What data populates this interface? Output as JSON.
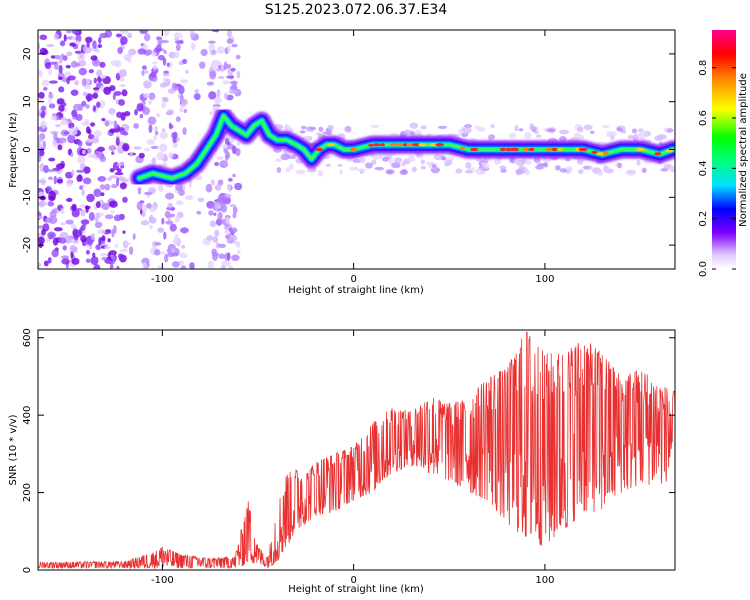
{
  "page_title": "S125.2023.072.06.37.E34",
  "chart_data": [
    {
      "type": "heatmap",
      "title": "S125.2023.072.06.37.E34",
      "xlabel": "Height of straight line (km)",
      "ylabel": "Frequency (Hz)",
      "xlim": [
        -165,
        168
      ],
      "ylim": [
        -25,
        25
      ],
      "x_ticks": [
        -100,
        0,
        100
      ],
      "y_ticks": [
        -20,
        -10,
        0,
        10,
        20
      ],
      "colorbar": {
        "label": "Normalized spectral amplitude",
        "range": [
          0,
          0.95
        ],
        "ticks": [
          0.0,
          0.2,
          0.4,
          0.6,
          0.8
        ],
        "tick_labels": [
          "0.0",
          "0.2",
          "0.4",
          "0.6",
          "0.8"
        ],
        "colormap": [
          "#ffffff",
          "#e0c8ff",
          "#8000ff",
          "#0000ff",
          "#00e0ff",
          "#00ff00",
          "#ffff00",
          "#ff8000",
          "#ff0000",
          "#ff0090"
        ]
      },
      "ridge": {
        "x": [
          -112,
          -105,
          -95,
          -88,
          -82,
          -77,
          -72,
          -68,
          -64,
          -60,
          -56,
          -52,
          -48,
          -44,
          -40,
          -35,
          -30,
          -26,
          -22,
          -18,
          -14,
          -10,
          -5,
          0,
          10,
          20,
          30,
          40,
          50,
          60,
          70,
          80,
          90,
          100,
          110,
          120,
          130,
          140,
          150,
          160,
          167
        ],
        "y": [
          -6,
          -5,
          -6,
          -5,
          -3,
          0,
          3,
          7,
          5,
          4,
          3,
          5,
          6,
          3,
          2,
          2,
          1,
          0,
          -2,
          0,
          1,
          1,
          0,
          0,
          1,
          1,
          1,
          1,
          1,
          0,
          0,
          0,
          0,
          0,
          0,
          0,
          -1,
          0,
          0,
          -1,
          0
        ]
      },
      "grid": false
    },
    {
      "type": "line",
      "xlabel": "Height of straight line (km)",
      "ylabel": "SNR (10 * v/v)",
      "xlim": [
        -165,
        168
      ],
      "ylim": [
        0,
        620
      ],
      "x_ticks": [
        -100,
        0,
        100
      ],
      "y_ticks": [
        0,
        200,
        400,
        600
      ],
      "color": "#e83030",
      "envelope": {
        "x": [
          -165,
          -120,
          -105,
          -100,
          -90,
          -75,
          -62,
          -58,
          -55,
          -50,
          -45,
          -40,
          -35,
          -30,
          -25,
          -20,
          -10,
          0,
          10,
          20,
          30,
          40,
          50,
          60,
          70,
          80,
          90,
          100,
          110,
          120,
          130,
          140,
          150,
          160,
          168
        ],
        "upper": [
          20,
          22,
          45,
          60,
          40,
          30,
          35,
          120,
          180,
          60,
          35,
          160,
          250,
          260,
          250,
          280,
          300,
          320,
          380,
          420,
          410,
          450,
          430,
          440,
          500,
          520,
          620,
          560,
          560,
          600,
          560,
          500,
          520,
          480,
          460
        ],
        "lower": [
          5,
          5,
          5,
          5,
          5,
          5,
          5,
          10,
          20,
          15,
          5,
          20,
          60,
          100,
          120,
          140,
          150,
          180,
          200,
          250,
          270,
          250,
          230,
          200,
          180,
          120,
          80,
          60,
          100,
          150,
          150,
          200,
          220,
          220,
          240
        ]
      },
      "grid": false
    }
  ]
}
